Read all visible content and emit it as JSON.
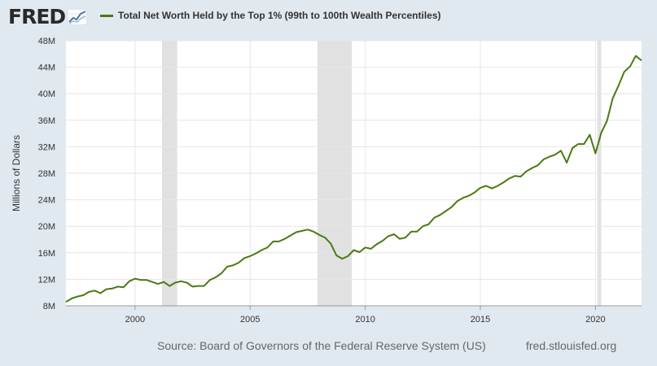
{
  "header": {
    "logo_text": "FRED",
    "legend_label": "Total Net Worth Held by the Top 1% (99th to 100th Wealth Percentiles)"
  },
  "footer": {
    "source": "Source: Board of Governors of the Federal Reserve System (US)",
    "site": "fred.stlouisfed.org"
  },
  "colors": {
    "line": "#4a7a14",
    "recession": "#e1e1e1",
    "background": "#e1e9f0",
    "plot": "#ffffff"
  },
  "chart_data": {
    "type": "line",
    "title": "Total Net Worth Held by the Top 1% (99th to 100th Wealth Percentiles)",
    "ylabel": "Millions of Dollars",
    "xlim": [
      1997.0,
      2022.0
    ],
    "ylim": [
      8,
      48
    ],
    "x_ticks": [
      2000,
      2005,
      2010,
      2015,
      2020
    ],
    "x_tick_labels": [
      "2000",
      "2005",
      "2010",
      "2015",
      "2020"
    ],
    "y_ticks": [
      8,
      12,
      16,
      20,
      24,
      28,
      32,
      36,
      40,
      44,
      48
    ],
    "y_tick_labels": [
      "8M",
      "12M",
      "16M",
      "20M",
      "24M",
      "28M",
      "32M",
      "36M",
      "40M",
      "44M",
      "48M"
    ],
    "grid": true,
    "recessions": [
      [
        2001.17,
        2001.83
      ],
      [
        2007.92,
        2009.42
      ],
      [
        2020.08,
        2020.25
      ]
    ],
    "series": [
      {
        "name": "Total Net Worth Held by the Top 1% (99th to 100th Wealth Percentiles)",
        "x": [
          1997.0,
          1997.25,
          1997.5,
          1997.75,
          1998.0,
          1998.25,
          1998.5,
          1998.75,
          1999.0,
          1999.25,
          1999.5,
          1999.75,
          2000.0,
          2000.25,
          2000.5,
          2000.75,
          2001.0,
          2001.25,
          2001.5,
          2001.75,
          2002.0,
          2002.25,
          2002.5,
          2002.75,
          2003.0,
          2003.25,
          2003.5,
          2003.75,
          2004.0,
          2004.25,
          2004.5,
          2004.75,
          2005.0,
          2005.25,
          2005.5,
          2005.75,
          2006.0,
          2006.25,
          2006.5,
          2006.75,
          2007.0,
          2007.25,
          2007.5,
          2007.75,
          2008.0,
          2008.25,
          2008.5,
          2008.75,
          2009.0,
          2009.25,
          2009.5,
          2009.75,
          2010.0,
          2010.25,
          2010.5,
          2010.75,
          2011.0,
          2011.25,
          2011.5,
          2011.75,
          2012.0,
          2012.25,
          2012.5,
          2012.75,
          2013.0,
          2013.25,
          2013.5,
          2013.75,
          2014.0,
          2014.25,
          2014.5,
          2014.75,
          2015.0,
          2015.25,
          2015.5,
          2015.75,
          2016.0,
          2016.25,
          2016.5,
          2016.75,
          2017.0,
          2017.25,
          2017.5,
          2017.75,
          2018.0,
          2018.25,
          2018.5,
          2018.75,
          2019.0,
          2019.25,
          2019.5,
          2019.75,
          2020.0,
          2020.25,
          2020.5,
          2020.75,
          2021.0,
          2021.25,
          2021.5,
          2021.75,
          2022.0
        ],
        "values": [
          8.6,
          9.1,
          9.4,
          9.6,
          10.1,
          10.3,
          9.9,
          10.5,
          10.6,
          10.9,
          10.8,
          11.7,
          12.1,
          11.9,
          11.9,
          11.6,
          11.3,
          11.6,
          11.0,
          11.5,
          11.7,
          11.5,
          10.9,
          11.0,
          11.0,
          11.9,
          12.3,
          12.9,
          13.9,
          14.1,
          14.5,
          15.2,
          15.5,
          15.9,
          16.4,
          16.8,
          17.7,
          17.7,
          18.1,
          18.6,
          19.1,
          19.3,
          19.5,
          19.2,
          18.7,
          18.3,
          17.4,
          15.6,
          15.1,
          15.5,
          16.4,
          16.1,
          16.8,
          16.6,
          17.3,
          17.8,
          18.5,
          18.8,
          18.1,
          18.3,
          19.2,
          19.2,
          20.0,
          20.3,
          21.3,
          21.7,
          22.3,
          22.9,
          23.8,
          24.3,
          24.6,
          25.1,
          25.8,
          26.1,
          25.7,
          26.1,
          26.6,
          27.2,
          27.6,
          27.5,
          28.3,
          28.8,
          29.2,
          30.1,
          30.5,
          30.8,
          31.4,
          29.6,
          31.8,
          32.4,
          32.4,
          33.8,
          31.0,
          34.1,
          35.9,
          39.3,
          41.2,
          43.3,
          44.1,
          45.7,
          45.0
        ]
      }
    ]
  }
}
